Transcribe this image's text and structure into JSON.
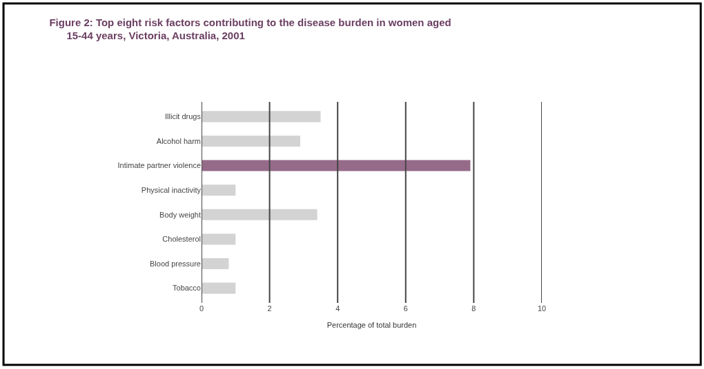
{
  "chart_data": {
    "type": "bar",
    "orientation": "horizontal",
    "title": "Figure 2: Top eight risk factors contributing to the disease burden in women aged\n15-44 years, Victoria, Australia, 2001",
    "categories": [
      "Illicit drugs",
      "Alcohol harm",
      "Intimate partner violence",
      "Physical inactivity",
      "Body weight",
      "Cholesterol",
      "Blood pressure",
      "Tobacco"
    ],
    "values": [
      3.5,
      2.9,
      7.9,
      1.0,
      3.4,
      1.0,
      0.8,
      1.0
    ],
    "colors": [
      "#d3d3d3",
      "#d3d3d3",
      "#966b8a",
      "#d3d3d3",
      "#d3d3d3",
      "#d3d3d3",
      "#d3d3d3",
      "#d3d3d3"
    ],
    "xlabel": "Percentage of total burden",
    "xlim": [
      0,
      10
    ],
    "xticks": [
      0,
      2,
      4,
      6,
      8,
      10
    ],
    "grid": "x",
    "legend": false
  }
}
